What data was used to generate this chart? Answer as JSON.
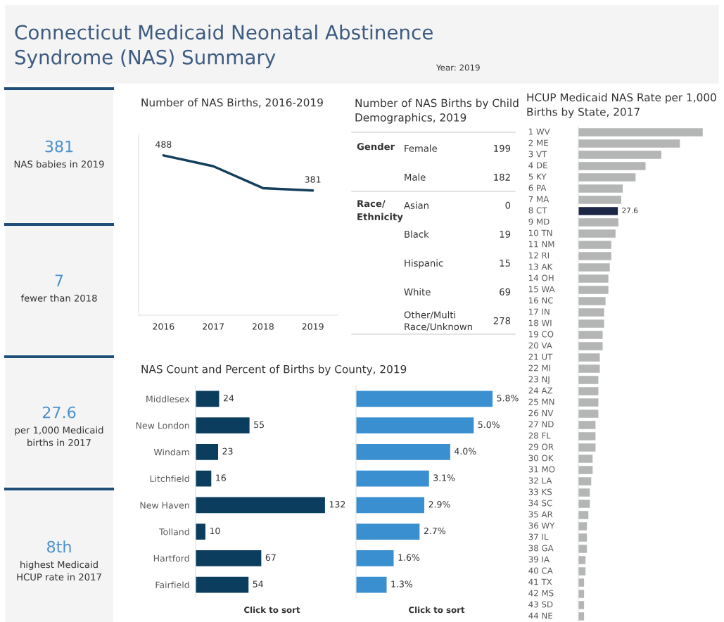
{
  "chart_data": [
    {
      "type": "other",
      "title": "Connecticut Medicaid Neonatal Abstinence\nSyndrome (NAS) Summary",
      "subtitle": "Year: 2019"
    },
    {
      "type": "other",
      "title": "381",
      "subtitle": "NAS babies in 2019"
    },
    {
      "type": "other",
      "title": "7",
      "subtitle": "fewer than 2018"
    },
    {
      "type": "other",
      "title": "27.6",
      "subtitle": "per 1,000 Medicaid\nbirths in 2017"
    },
    {
      "type": "other",
      "title": "8th",
      "subtitle": "highest Medicaid\nHCUP rate in 2017"
    },
    {
      "type": "line",
      "title": "Number of NAS Births, 2016-2019",
      "x": [
        2016,
        2017,
        2018,
        2019
      ],
      "xlim": [
        2015.5,
        2019.5
      ],
      "xticks": [
        2016,
        2017,
        2018,
        2019
      ],
      "series": [
        {
          "color": "#143f5c",
          "values": [
            488,
            455,
            388,
            381
          ],
          "value_labels": [
            "488",
            null,
            null,
            "381"
          ]
        }
      ],
      "ylim": [
        0,
        550
      ],
      "tick_labels": "x"
    },
    {
      "type": "other",
      "title": "Number of NAS Births by Child\nDemographics, 2019",
      "ylabel": "Gender",
      "categories": [
        "Female",
        "Male"
      ],
      "values": [
        199,
        182
      ],
      "value_labels": [
        "199",
        "182"
      ]
    },
    {
      "type": "other",
      "ylabel": "Race/\nEthnicity",
      "categories": [
        "Asian",
        "Black",
        "Hispanic",
        "White",
        "Other/Multi\nRace/Unknown"
      ],
      "values": [
        0,
        19,
        15,
        69,
        278
      ],
      "value_labels": [
        "0",
        "19",
        "15",
        "69",
        "278"
      ]
    },
    {
      "type": "bar",
      "orientation": "horizontal",
      "title": "NAS Count and Percent of Births by County, 2019",
      "categories": [
        "Middlesex",
        "New London",
        "Windam",
        "Litchfield",
        "New Haven",
        "Tolland",
        "Hartford",
        "Fairfield"
      ],
      "series": [
        {
          "color": "#0b3d5e",
          "values": [
            24,
            55,
            23,
            16,
            132,
            10,
            67,
            54
          ]
        }
      ],
      "data_labels": true,
      "tick_labels": "y",
      "annotations": [
        "Click to sort"
      ]
    },
    {
      "type": "bar",
      "orientation": "horizontal",
      "categories": [
        null,
        null,
        null,
        null,
        null,
        null,
        null,
        null
      ],
      "series": [
        {
          "color": "#3a8fd0",
          "values": [
            5.8,
            5.0,
            4.0,
            3.1,
            2.9,
            2.7,
            1.6,
            1.3
          ],
          "value_labels": [
            "5.8%",
            "5.0%",
            "4.0%",
            "3.1%",
            "2.9%",
            "2.7%",
            "1.6%",
            "1.3%"
          ]
        }
      ],
      "annotations": [
        "Click to sort"
      ]
    },
    {
      "type": "bar",
      "orientation": "horizontal",
      "title": "HCUP Medicaid NAS Rate per 1,000\nBirths by State, 2017",
      "categories": [
        "1 WV",
        "2 ME",
        "3 VT",
        "4 DE",
        "5 KY",
        "6 PA",
        "7 MA",
        "8 CT",
        "9 MD",
        "10 TN",
        "11 NM",
        "12 RI",
        "13 AK",
        "14 OH",
        "15 WA",
        "16 NC",
        "17 IN",
        "18 WI",
        "19 CO",
        "20 VA",
        "21 UT",
        "22 MI",
        "23 NJ",
        "24 AZ",
        "25 MN",
        "26 NV",
        "27 ND",
        "28 FL",
        "29 OR",
        "30 OK",
        "31 MO",
        "32 LA",
        "33 KS",
        "34 SC",
        "35 AR",
        "36 WY",
        "37 IL",
        "38 GA",
        "39 IA",
        "40 CA",
        "41 TX",
        "42 MS",
        "43 SD",
        "44 NE"
      ],
      "values": [
        87,
        71,
        58,
        47,
        40,
        31,
        30,
        27.6,
        28,
        26,
        23,
        23,
        22,
        21,
        21,
        19,
        18,
        18,
        17,
        17,
        15,
        15,
        14,
        14,
        14,
        14,
        12,
        12,
        12,
        10,
        10,
        9,
        8,
        8,
        7,
        6,
        6,
        6,
        5,
        5,
        4,
        4,
        4,
        4
      ],
      "colors": [
        "#b4b5b5",
        "#b4b5b5",
        "#b4b5b5",
        "#b4b5b5",
        "#b4b5b5",
        "#b4b5b5",
        "#b4b5b5",
        "#1c2647",
        "#b4b5b5",
        "#b4b5b5",
        "#b4b5b5",
        "#b4b5b5",
        "#b4b5b5",
        "#b4b5b5",
        "#b4b5b5",
        "#b4b5b5",
        "#b4b5b5",
        "#b4b5b5",
        "#b4b5b5",
        "#b4b5b5",
        "#b4b5b5",
        "#b4b5b5",
        "#b4b5b5",
        "#b4b5b5",
        "#b4b5b5",
        "#b4b5b5",
        "#b4b5b5",
        "#b4b5b5",
        "#b4b5b5",
        "#b4b5b5",
        "#b4b5b5",
        "#b4b5b5",
        "#b4b5b5",
        "#b4b5b5",
        "#b4b5b5",
        "#b4b5b5",
        "#b4b5b5",
        "#b4b5b5",
        "#b4b5b5",
        "#b4b5b5",
        "#b4b5b5",
        "#b4b5b5",
        "#b4b5b5",
        "#b4b5b5"
      ],
      "value_labels": [
        null,
        null,
        null,
        null,
        null,
        null,
        null,
        "27.6",
        null,
        null,
        null,
        null,
        null,
        null,
        null,
        null,
        null,
        null,
        null,
        null,
        null,
        null,
        null,
        null,
        null,
        null,
        null,
        null,
        null,
        null,
        null,
        null,
        null,
        null,
        null,
        null,
        null,
        null,
        null,
        null,
        null,
        null,
        null,
        null
      ],
      "tick_labels": "y"
    }
  ]
}
